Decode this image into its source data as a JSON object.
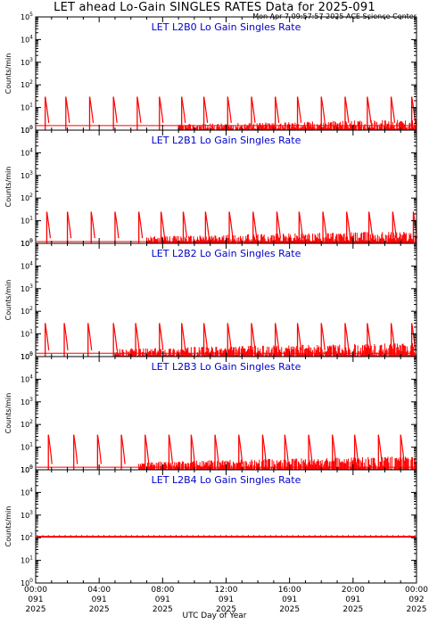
{
  "title": "LET ahead Lo-Gain SINGLES RATES Data for 2025-091",
  "timestamp": "Mon Apr  7 09:57:57 2025 ACE Science Center",
  "colors": {
    "data": "#ff0000",
    "panel_title": "#0000cc",
    "axis": "#000000"
  },
  "chart_data": {
    "type": "line",
    "xlabel": "UTC Day of Year",
    "ylabel": "Counts/min",
    "yscale": "log",
    "ylim": [
      1,
      100000
    ],
    "y_ticks": [
      {
        "value": 1,
        "label": "10^0"
      },
      {
        "value": 10,
        "label": "10^1"
      },
      {
        "value": 100,
        "label": "10^2"
      },
      {
        "value": 1000,
        "label": "10^3"
      },
      {
        "value": 10000,
        "label": "10^4"
      },
      {
        "value": 100000,
        "label": "10^5"
      }
    ],
    "xlim_hours": [
      0,
      24
    ],
    "x_ticks": [
      {
        "hour": 0,
        "time": "00:00",
        "doy": "091",
        "year": "2025"
      },
      {
        "hour": 4,
        "time": "04:00",
        "doy": "091",
        "year": "2025"
      },
      {
        "hour": 8,
        "time": "08:00",
        "doy": "091",
        "year": "2025"
      },
      {
        "hour": 12,
        "time": "12:00",
        "doy": "091",
        "year": "2025"
      },
      {
        "hour": 16,
        "time": "16:00",
        "doy": "091",
        "year": "2025"
      },
      {
        "hour": 20,
        "time": "20:00",
        "doy": "091",
        "year": "2025"
      },
      {
        "hour": 24,
        "time": "00:00",
        "doy": "092",
        "year": "2025"
      }
    ],
    "panels": [
      {
        "title": "LET L2B0 Lo Gain Singles Rate",
        "spikes_hours": [
          0.6,
          1.9,
          3.4,
          4.9,
          6.4,
          7.8,
          9.2,
          10.6,
          12.1,
          13.6,
          15.1,
          16.5,
          18.0,
          19.5,
          20.9,
          22.4,
          23.7
        ],
        "spike_peak": 30,
        "baseline": 1.6,
        "noise_start_hour": 9.0,
        "noise_max": 3.0
      },
      {
        "title": "LET L2B1 Lo Gain Singles Rate",
        "spikes_hours": [
          0.7,
          2.0,
          3.5,
          5.0,
          6.5,
          7.9,
          9.3,
          10.7,
          12.2,
          13.7,
          15.2,
          16.6,
          18.1,
          19.6,
          21.0,
          22.5,
          23.8
        ],
        "spike_peak": 25,
        "baseline": 1.2,
        "noise_start_hour": 7.0,
        "noise_max": 3.5
      },
      {
        "title": "LET L2B2 Lo Gain Singles Rate",
        "spikes_hours": [
          0.6,
          1.8,
          3.3,
          4.9,
          6.3,
          7.8,
          9.2,
          10.6,
          12.1,
          13.6,
          15.1,
          16.5,
          18.0,
          19.5,
          20.9,
          22.4,
          23.7
        ],
        "spike_peak": 30,
        "baseline": 1.4,
        "noise_start_hour": 5.0,
        "noise_max": 4.0
      },
      {
        "title": "LET L2B3 Lo Gain Singles Rate",
        "spikes_hours": [
          0.8,
          2.4,
          3.9,
          5.4,
          6.9,
          8.4,
          9.8,
          11.3,
          12.8,
          14.3,
          15.7,
          17.2,
          18.7,
          20.1,
          21.6,
          23.0
        ],
        "spike_peak": 35,
        "baseline": 1.3,
        "noise_start_hour": 6.5,
        "noise_max": 4.0
      },
      {
        "title": "LET L2B4 Lo Gain Singles Rate",
        "spikes_hours": [],
        "spike_peak": 0,
        "baseline": 110,
        "noise_start_hour": 24,
        "noise_max": 0
      }
    ]
  }
}
